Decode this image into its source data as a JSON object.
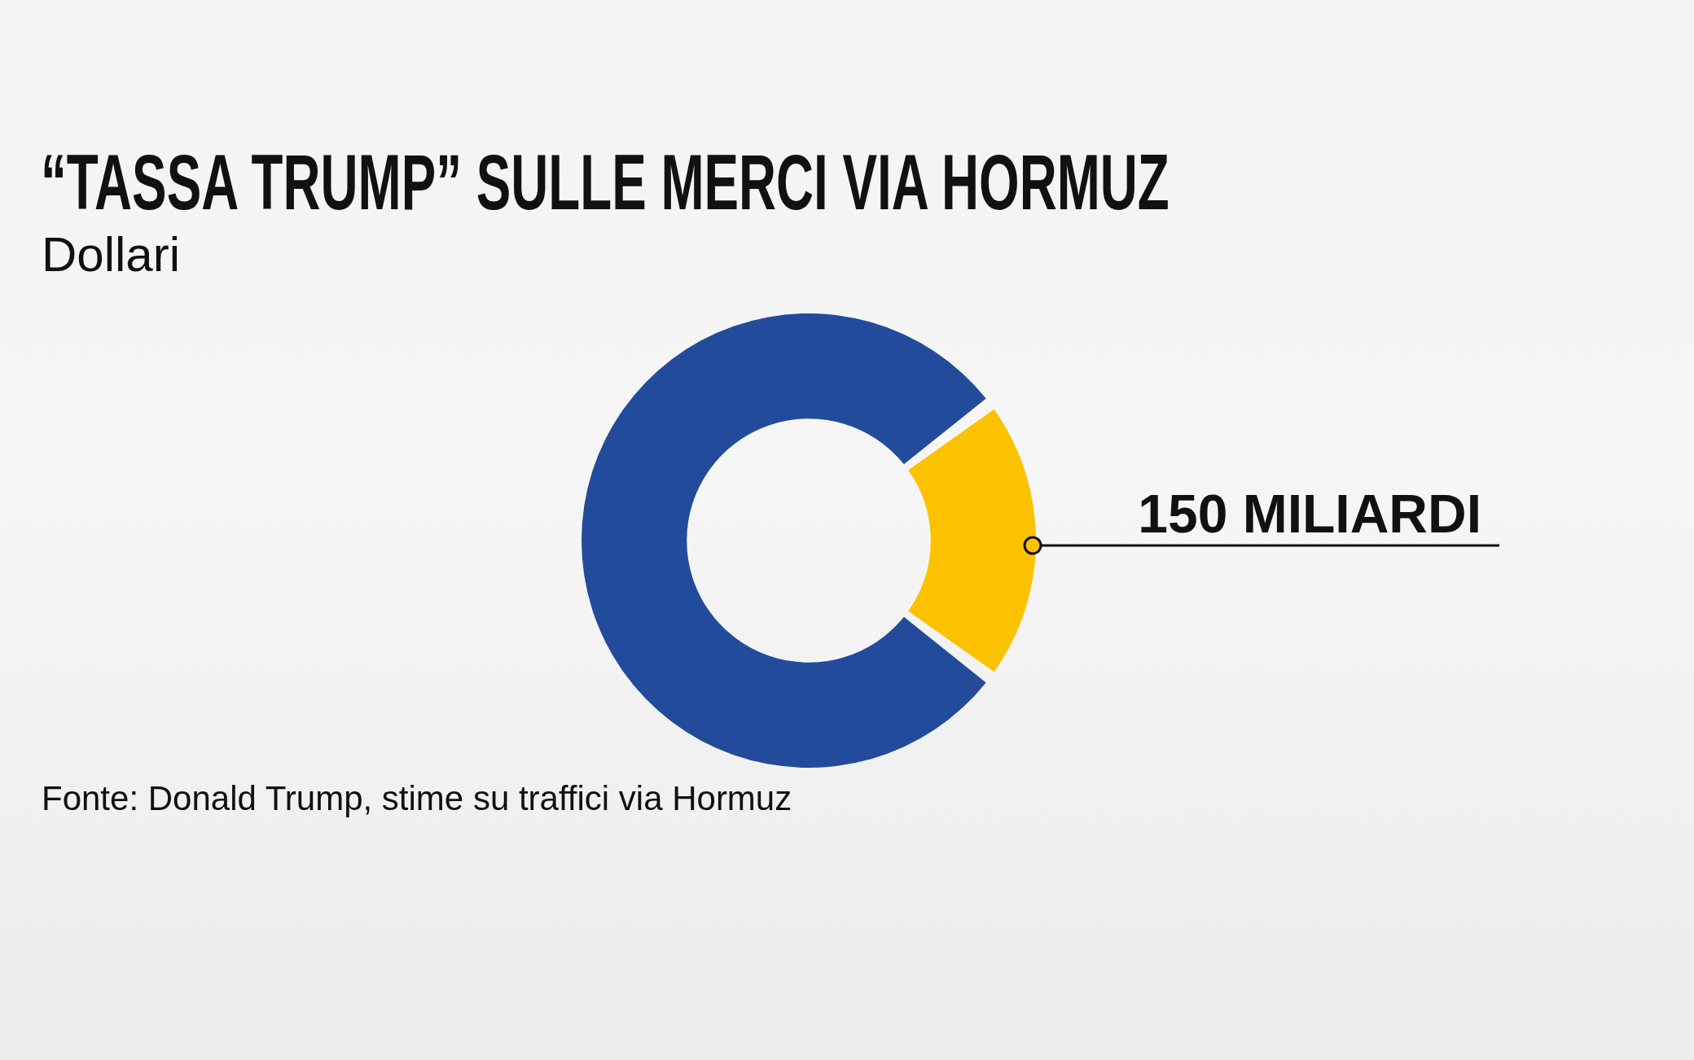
{
  "chart_data": {
    "type": "donut",
    "title": "“TASSA TRUMP” SULLE MERCI VIA HORMUZ",
    "subtitle": "Dollari",
    "categories": [
      null,
      null
    ],
    "values": [
      600,
      150
    ],
    "colors": [
      "#234b9b",
      "#fcc200"
    ],
    "value_labels": [
      null,
      "150 MILIARDI"
    ],
    "annotations": [
      "Fonte: Donald Trump, stime su traffici via Hormuz"
    ]
  }
}
